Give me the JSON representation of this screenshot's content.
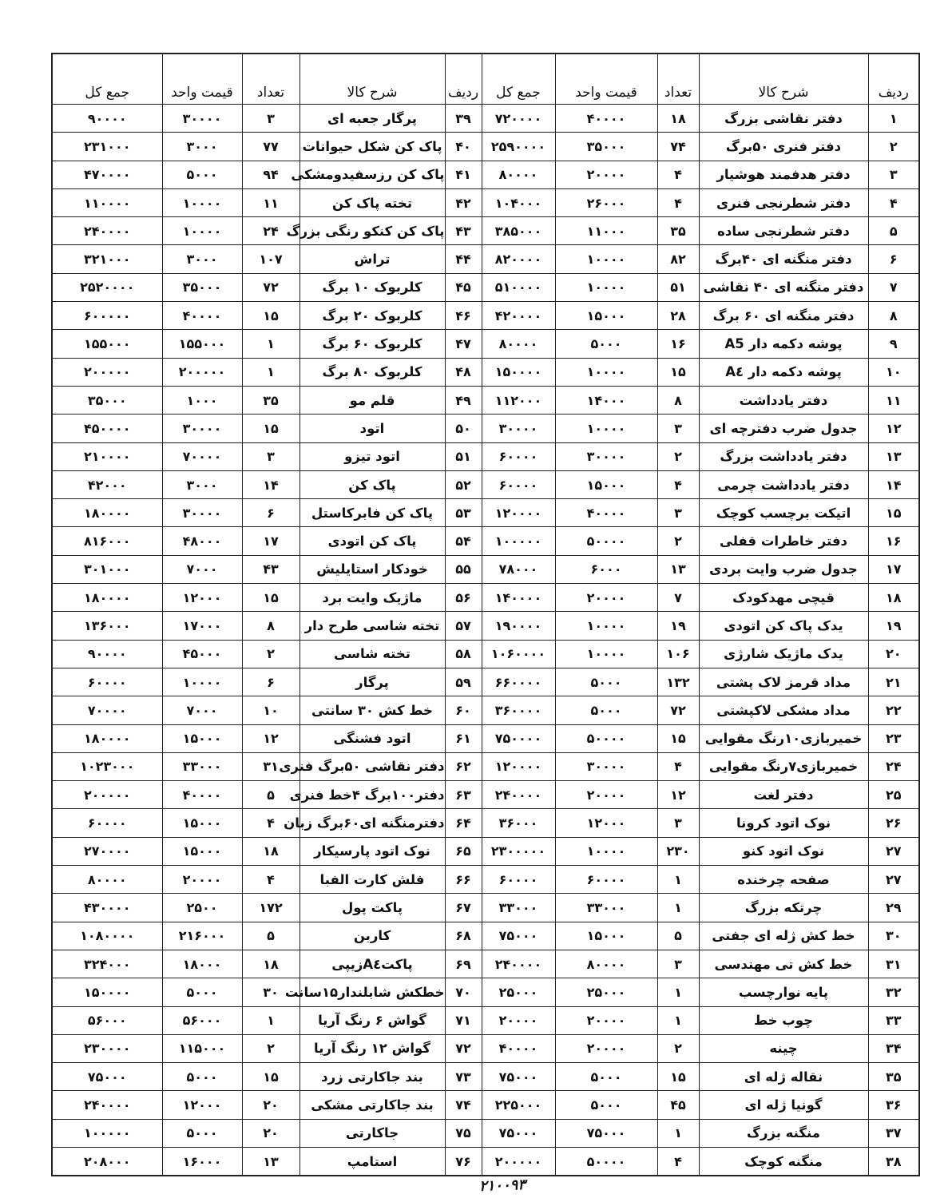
{
  "headers": {
    "row": "ردیف",
    "description": "شرح کالا",
    "quantity": "تعداد",
    "unit_price": "قیمت واحد",
    "total": "جمع کل"
  },
  "right_table": [
    [
      "۱",
      "دفتر نقاشی بزرگ",
      "۱۸",
      "۴۰۰۰۰",
      "۷۲۰۰۰۰"
    ],
    [
      "۲",
      "دفتر فنری ۵۰برگ",
      "۷۴",
      "۳۵۰۰۰",
      "۲۵۹۰۰۰۰"
    ],
    [
      "۳",
      "دفتر هدفمند هوشیار",
      "۴",
      "۲۰۰۰۰",
      "۸۰۰۰۰"
    ],
    [
      "۴",
      "دفتر شطرنجی فنری",
      "۴",
      "۲۶۰۰۰",
      "۱۰۴۰۰۰"
    ],
    [
      "۵",
      "دفتر شطرنجی ساده",
      "۳۵",
      "۱۱۰۰۰",
      "۳۸۵۰۰۰"
    ],
    [
      "۶",
      "دفتر منگنه ای ۴۰برگ",
      "۸۲",
      "۱۰۰۰۰",
      "۸۲۰۰۰۰"
    ],
    [
      "۷",
      "دفتر منگنه ای ۴۰ نقاشی",
      "۵۱",
      "۱۰۰۰۰",
      "۵۱۰۰۰۰"
    ],
    [
      "۸",
      "دفتر منگنه ای ۶۰ برگ",
      "۲۸",
      "۱۵۰۰۰",
      "۴۲۰۰۰۰"
    ],
    [
      "۹",
      "پوشه دکمه دار A5",
      "۱۶",
      "۵۰۰۰",
      "۸۰۰۰۰"
    ],
    [
      "۱۰",
      "پوشه دکمه دار A٤",
      "۱۵",
      "۱۰۰۰۰",
      "۱۵۰۰۰۰"
    ],
    [
      "۱۱",
      "دفتر یادداشت",
      "۸",
      "۱۴۰۰۰",
      "۱۱۲۰۰۰"
    ],
    [
      "۱۲",
      "جدول ضرب دفترچه ای",
      "۳",
      "۱۰۰۰۰",
      "۳۰۰۰۰"
    ],
    [
      "۱۳",
      "دفتر یادداشت بزرگ",
      "۲",
      "۳۰۰۰۰",
      "۶۰۰۰۰"
    ],
    [
      "۱۴",
      "دفتر یادداشت چرمی",
      "۴",
      "۱۵۰۰۰",
      "۶۰۰۰۰"
    ],
    [
      "۱۵",
      "اتیکت برچسب کوچک",
      "۳",
      "۴۰۰۰۰",
      "۱۲۰۰۰۰"
    ],
    [
      "۱۶",
      "دفتر خاطرات قفلی",
      "۲",
      "۵۰۰۰۰",
      "۱۰۰۰۰۰"
    ],
    [
      "۱۷",
      "جدول ضرب وایت بردی",
      "۱۳",
      "۶۰۰۰",
      "۷۸۰۰۰"
    ],
    [
      "۱۸",
      "قیچی مهدکودک",
      "۷",
      "۲۰۰۰۰",
      "۱۴۰۰۰۰"
    ],
    [
      "۱۹",
      "یدک پاک کن اتودی",
      "۱۹",
      "۱۰۰۰۰",
      "۱۹۰۰۰۰"
    ],
    [
      "۲۰",
      "یدک ماژیک شارژی",
      "۱۰۶",
      "۱۰۰۰۰",
      "۱۰۶۰۰۰۰"
    ],
    [
      "۲۱",
      "مداد قرمز لاک پشتی",
      "۱۳۲",
      "۵۰۰۰",
      "۶۶۰۰۰۰"
    ],
    [
      "۲۲",
      "مداد مشکی لاکپشتی",
      "۷۲",
      "۵۰۰۰",
      "۳۶۰۰۰۰"
    ],
    [
      "۲۳",
      "خمیربازی۱۰رنگ مقوایی",
      "۱۵",
      "۵۰۰۰۰",
      "۷۵۰۰۰۰"
    ],
    [
      "۲۴",
      "خمیربازی۷رنگ مقوایی",
      "۴",
      "۳۰۰۰۰",
      "۱۲۰۰۰۰"
    ],
    [
      "۲۵",
      "دفتر لغت",
      "۱۲",
      "۲۰۰۰۰",
      "۲۴۰۰۰۰"
    ],
    [
      "۲۶",
      "نوک اتود کرونا",
      "۳",
      "۱۲۰۰۰",
      "۳۶۰۰۰"
    ],
    [
      "۲۷",
      "نوک اتود کنو",
      "۲۳۰",
      "۱۰۰۰۰",
      "۲۳۰۰۰۰۰"
    ],
    [
      "۲۷",
      "صفحه چرخنده",
      "۱",
      "۶۰۰۰۰",
      "۶۰۰۰۰"
    ],
    [
      "۲۹",
      "چرتکه بزرگ",
      "۱",
      "۳۳۰۰۰",
      "۳۳۰۰۰"
    ],
    [
      "۳۰",
      "خط کش ژله ای جفتی",
      "۵",
      "۱۵۰۰۰",
      "۷۵۰۰۰"
    ],
    [
      "۳۱",
      "خط کش تی مهندسی",
      "۳",
      "۸۰۰۰۰",
      "۲۴۰۰۰۰"
    ],
    [
      "۳۲",
      "پایه نوارچسب",
      "۱",
      "۲۵۰۰۰",
      "۲۵۰۰۰"
    ],
    [
      "۳۳",
      "چوب خط",
      "۱",
      "۲۰۰۰۰",
      "۲۰۰۰۰"
    ],
    [
      "۳۴",
      "چینه",
      "۲",
      "۲۰۰۰۰",
      "۴۰۰۰۰"
    ],
    [
      "۳۵",
      "نقاله ژله ای",
      "۱۵",
      "۵۰۰۰",
      "۷۵۰۰۰"
    ],
    [
      "۳۶",
      "گونیا ژله ای",
      "۴۵",
      "۵۰۰۰",
      "۲۲۵۰۰۰"
    ],
    [
      "۳۷",
      "منگنه بزرگ",
      "۱",
      "۷۵۰۰۰",
      "۷۵۰۰۰"
    ],
    [
      "۳۸",
      "منگنه کوچک",
      "۴",
      "۵۰۰۰۰",
      "۲۰۰۰۰۰"
    ]
  ],
  "left_table": [
    [
      "۳۹",
      "پرگار جعبه ای",
      "۳",
      "۳۰۰۰۰",
      "۹۰۰۰۰"
    ],
    [
      "۴۰",
      "پاک کن شکل حیوانات",
      "۷۷",
      "۳۰۰۰",
      "۲۳۱۰۰۰"
    ],
    [
      "۴۱",
      "پاک کن رزسفیدومشکی",
      "۹۴",
      "۵۰۰۰",
      "۴۷۰۰۰۰"
    ],
    [
      "۴۲",
      "تخته پاک کن",
      "۱۱",
      "۱۰۰۰۰",
      "۱۱۰۰۰۰"
    ],
    [
      "۴۳",
      "پاک کن کنکو رنگی بزرگ",
      "۲۴",
      "۱۰۰۰۰",
      "۲۴۰۰۰۰"
    ],
    [
      "۴۴",
      "تراش",
      "۱۰۷",
      "۳۰۰۰",
      "۳۲۱۰۰۰"
    ],
    [
      "۴۵",
      "کلربوک ۱۰ برگ",
      "۷۲",
      "۳۵۰۰۰",
      "۲۵۲۰۰۰۰"
    ],
    [
      "۴۶",
      "کلربوک ۲۰ برگ",
      "۱۵",
      "۴۰۰۰۰",
      "۶۰۰۰۰۰"
    ],
    [
      "۴۷",
      "کلربوک ۶۰ برگ",
      "۱",
      "۱۵۵۰۰۰",
      "۱۵۵۰۰۰"
    ],
    [
      "۴۸",
      "کلربوک ۸۰ برگ",
      "۱",
      "۲۰۰۰۰۰",
      "۲۰۰۰۰۰"
    ],
    [
      "۴۹",
      "قلم مو",
      "۳۵",
      "۱۰۰۰",
      "۳۵۰۰۰"
    ],
    [
      "۵۰",
      "اتود",
      "۱۵",
      "۳۰۰۰۰",
      "۴۵۰۰۰۰"
    ],
    [
      "۵۱",
      "اتود تیزو",
      "۳",
      "۷۰۰۰۰",
      "۲۱۰۰۰۰"
    ],
    [
      "۵۲",
      "پاک کن",
      "۱۴",
      "۳۰۰۰",
      "۴۲۰۰۰"
    ],
    [
      "۵۳",
      "پاک کن فابرکاستل",
      "۶",
      "۳۰۰۰۰",
      "۱۸۰۰۰۰"
    ],
    [
      "۵۴",
      "پاک کن اتودی",
      "۱۷",
      "۴۸۰۰۰",
      "۸۱۶۰۰۰"
    ],
    [
      "۵۵",
      "خودکار استایلیش",
      "۴۳",
      "۷۰۰۰",
      "۳۰۱۰۰۰"
    ],
    [
      "۵۶",
      "ماژیک وایت برد",
      "۱۵",
      "۱۲۰۰۰",
      "۱۸۰۰۰۰"
    ],
    [
      "۵۷",
      "تخته شاسی طرح دار",
      "۸",
      "۱۷۰۰۰",
      "۱۳۶۰۰۰"
    ],
    [
      "۵۸",
      "تخته شاسی",
      "۲",
      "۴۵۰۰۰",
      "۹۰۰۰۰"
    ],
    [
      "۵۹",
      "پرگار",
      "۶",
      "۱۰۰۰۰",
      "۶۰۰۰۰"
    ],
    [
      "۶۰",
      "خط کش ۳۰ سانتی",
      "۱۰",
      "۷۰۰۰",
      "۷۰۰۰۰"
    ],
    [
      "۶۱",
      "اتود فشنگی",
      "۱۲",
      "۱۵۰۰۰",
      "۱۸۰۰۰۰"
    ],
    [
      "۶۲",
      "دفتر نقاشی ۵۰برگ فنری",
      "۳۱",
      "۳۳۰۰۰",
      "۱۰۲۳۰۰۰"
    ],
    [
      "۶۳",
      "دفتر۱۰۰برگ ۴خط فنری",
      "۵",
      "۴۰۰۰۰",
      "۲۰۰۰۰۰"
    ],
    [
      "۶۴",
      "دفترمنگنه ای۶۰برگ زبان",
      "۴",
      "۱۵۰۰۰",
      "۶۰۰۰۰"
    ],
    [
      "۶۵",
      "نوک اتود پارسیکار",
      "۱۸",
      "۱۵۰۰۰",
      "۲۷۰۰۰۰"
    ],
    [
      "۶۶",
      "فلش کارت الفبا",
      "۴",
      "۲۰۰۰۰",
      "۸۰۰۰۰"
    ],
    [
      "۶۷",
      "پاکت پول",
      "۱۷۲",
      "۲۵۰۰",
      "۴۳۰۰۰۰"
    ],
    [
      "۶۸",
      "کاربن",
      "۵",
      "۲۱۶۰۰۰",
      "۱۰۸۰۰۰۰"
    ],
    [
      "۶۹",
      "پاکتA٤زیپی",
      "۱۸",
      "۱۸۰۰۰",
      "۳۲۴۰۰۰"
    ],
    [
      "۷۰",
      "خطکش شابلندار۱۵سانت",
      "۳۰",
      "۵۰۰۰",
      "۱۵۰۰۰۰"
    ],
    [
      "۷۱",
      "گواش ۶ رنگ آریا",
      "۱",
      "۵۶۰۰۰",
      "۵۶۰۰۰"
    ],
    [
      "۷۲",
      "گواش ۱۲ رنگ آریا",
      "۲",
      "۱۱۵۰۰۰",
      "۲۳۰۰۰۰"
    ],
    [
      "۷۳",
      "بند جاکارتی زرد",
      "۱۵",
      "۵۰۰۰",
      "۷۵۰۰۰"
    ],
    [
      "۷۴",
      "بند جاکارتی مشکی",
      "۲۰",
      "۱۲۰۰۰",
      "۲۴۰۰۰۰"
    ],
    [
      "۷۵",
      "جاکارتی",
      "۲۰",
      "۵۰۰۰",
      "۱۰۰۰۰۰"
    ],
    [
      "۷۶",
      "استامپ",
      "۱۳",
      "۱۶۰۰۰",
      "۲۰۸۰۰۰"
    ]
  ],
  "footer_handwritten_total": "۲۱۰۰۹۳"
}
